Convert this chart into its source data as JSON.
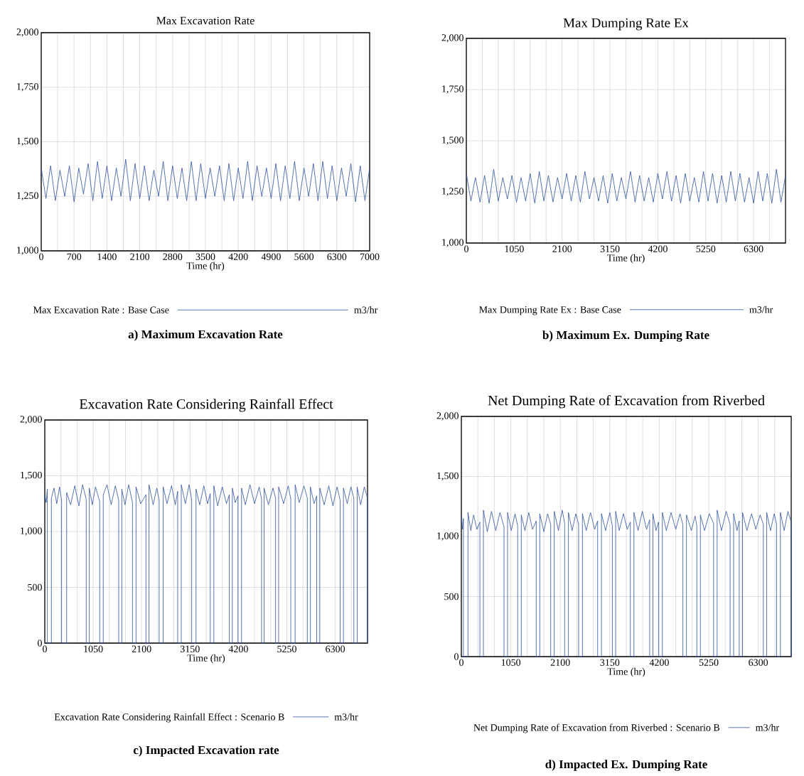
{
  "chart_data": [
    {
      "type": "line",
      "title": "Max Excavation Rate",
      "xlabel": "Time (hr)",
      "annotations": [
        "a) Maximum Excavation Rate",
        "m3/hr"
      ],
      "legend": "bottom",
      "grid": true,
      "xlim": [
        0,
        7000
      ],
      "ylim": [
        1000,
        2000
      ],
      "xticks": [
        0,
        {
          "value": 350,
          "label": null
        },
        700,
        {
          "value": 1050,
          "label": null
        },
        1400,
        {
          "value": 1750,
          "label": null
        },
        2100,
        {
          "value": 2450,
          "label": null
        },
        2800,
        {
          "value": 3150,
          "label": null
        },
        3500,
        {
          "value": 3850,
          "label": null
        },
        4200,
        {
          "value": 4550,
          "label": null
        },
        4900,
        {
          "value": 5250,
          "label": null
        },
        5600,
        {
          "value": 5950,
          "label": null
        },
        6300,
        {
          "value": 6650,
          "label": null
        },
        7000
      ],
      "yticks": [
        {
          "value": 1000,
          "label": "1,000"
        },
        {
          "value": 1250,
          "label": "1,250"
        },
        {
          "value": 1500,
          "label": "1,500"
        },
        {
          "value": 1750,
          "label": "1,750"
        },
        {
          "value": 2000,
          "label": "2,000"
        }
      ],
      "series": [
        {
          "name": "Max Excavation Rate : Base Case",
          "color": "#3050a0",
          "x": [
            0,
            100,
            200,
            300,
            400,
            500,
            600,
            700,
            800,
            900,
            1000,
            1100,
            1200,
            1300,
            1400,
            1500,
            1600,
            1700,
            1800,
            1900,
            2000,
            2100,
            2200,
            2300,
            2400,
            2500,
            2600,
            2700,
            2800,
            2900,
            3000,
            3100,
            3200,
            3300,
            3400,
            3500,
            3600,
            3700,
            3800,
            3900,
            4000,
            4100,
            4200,
            4300,
            4400,
            4500,
            4600,
            4700,
            4800,
            4900,
            5000,
            5100,
            5200,
            5300,
            5400,
            5500,
            5600,
            5700,
            5800,
            5900,
            6000,
            6100,
            6200,
            6300,
            6400,
            6500,
            6600,
            6700,
            6800,
            6900,
            7000
          ],
          "values": [
            1380,
            1240,
            1390,
            1230,
            1370,
            1250,
            1390,
            1225,
            1380,
            1260,
            1400,
            1230,
            1410,
            1240,
            1390,
            1230,
            1380,
            1250,
            1420,
            1230,
            1400,
            1240,
            1390,
            1230,
            1370,
            1250,
            1410,
            1230,
            1390,
            1240,
            1380,
            1230,
            1410,
            1230,
            1400,
            1240,
            1380,
            1250,
            1390,
            1230,
            1400,
            1230,
            1380,
            1240,
            1410,
            1230,
            1390,
            1250,
            1380,
            1240,
            1400,
            1230,
            1390,
            1240,
            1410,
            1230,
            1380,
            1250,
            1400,
            1230,
            1410,
            1240,
            1390,
            1230,
            1380,
            1250,
            1400,
            1225,
            1390,
            1230,
            1380
          ]
        }
      ]
    },
    {
      "type": "line",
      "title": "Max Dumping Rate Ex",
      "xlabel": "Time (hr)",
      "annotations": [
        "b) Maximum Ex. Dumping Rate",
        "m3/hr"
      ],
      "legend": "bottom",
      "grid": true,
      "xlim": [
        0,
        7000
      ],
      "ylim": [
        1000,
        2000
      ],
      "xticks": [
        0,
        {
          "value": 350,
          "label": null
        },
        {
          "value": 700,
          "label": null
        },
        1050,
        {
          "value": 1400,
          "label": null
        },
        {
          "value": 1750,
          "label": null
        },
        2100,
        {
          "value": 2450,
          "label": null
        },
        {
          "value": 2800,
          "label": null
        },
        3150,
        {
          "value": 3500,
          "label": null
        },
        {
          "value": 3850,
          "label": null
        },
        4200,
        {
          "value": 4550,
          "label": null
        },
        {
          "value": 4900,
          "label": null
        },
        5250,
        {
          "value": 5600,
          "label": null
        },
        {
          "value": 5950,
          "label": null
        },
        6300,
        {
          "value": 6650,
          "label": null
        }
      ],
      "yticks": [
        {
          "value": 1000,
          "label": "1,000"
        },
        {
          "value": 1250,
          "label": "1,250"
        },
        {
          "value": 1500,
          "label": "1,500"
        },
        {
          "value": 1750,
          "label": "1,750"
        },
        {
          "value": 2000,
          "label": "2,000"
        }
      ],
      "series": [
        {
          "name": "Max Dumping Rate Ex : Base Case",
          "color": "#3050a0",
          "x": [
            0,
            100,
            200,
            300,
            400,
            500,
            600,
            700,
            800,
            900,
            1000,
            1100,
            1200,
            1300,
            1400,
            1500,
            1600,
            1700,
            1800,
            1900,
            2000,
            2100,
            2200,
            2300,
            2400,
            2500,
            2600,
            2700,
            2800,
            2900,
            3000,
            3100,
            3200,
            3300,
            3400,
            3500,
            3600,
            3700,
            3800,
            3900,
            4000,
            4100,
            4200,
            4300,
            4400,
            4500,
            4600,
            4700,
            4800,
            4900,
            5000,
            5100,
            5200,
            5300,
            5400,
            5500,
            5600,
            5700,
            5800,
            5900,
            6000,
            6100,
            6200,
            6300,
            6400,
            6500,
            6600,
            6700,
            6800,
            6900,
            7000
          ],
          "values": [
            1340,
            1205,
            1320,
            1200,
            1330,
            1195,
            1360,
            1205,
            1320,
            1215,
            1330,
            1200,
            1320,
            1205,
            1340,
            1195,
            1350,
            1205,
            1330,
            1200,
            1320,
            1215,
            1340,
            1205,
            1330,
            1200,
            1350,
            1215,
            1320,
            1205,
            1330,
            1195,
            1340,
            1205,
            1320,
            1215,
            1350,
            1200,
            1330,
            1205,
            1320,
            1200,
            1340,
            1215,
            1350,
            1205,
            1330,
            1195,
            1340,
            1205,
            1320,
            1200,
            1350,
            1205,
            1340,
            1195,
            1330,
            1200,
            1350,
            1205,
            1340,
            1200,
            1320,
            1195,
            1350,
            1205,
            1340,
            1195,
            1360,
            1200,
            1330
          ]
        }
      ]
    },
    {
      "type": "line",
      "title": "Excavation Rate Considering Rainfall Effect",
      "xlabel": "Time (hr)",
      "annotations": [
        "c) Impacted Excavation rate",
        "m3/hr"
      ],
      "legend": "bottom",
      "grid": true,
      "xlim": [
        0,
        7000
      ],
      "ylim": [
        0,
        2000
      ],
      "xticks": [
        0,
        {
          "value": 350,
          "label": null
        },
        {
          "value": 700,
          "label": null
        },
        1050,
        {
          "value": 1400,
          "label": null
        },
        {
          "value": 1750,
          "label": null
        },
        2100,
        {
          "value": 2450,
          "label": null
        },
        {
          "value": 2800,
          "label": null
        },
        3150,
        {
          "value": 3500,
          "label": null
        },
        {
          "value": 3850,
          "label": null
        },
        4200,
        {
          "value": 4550,
          "label": null
        },
        {
          "value": 4900,
          "label": null
        },
        5250,
        {
          "value": 5600,
          "label": null
        },
        {
          "value": 5950,
          "label": null
        },
        6300,
        {
          "value": 6650,
          "label": null
        }
      ],
      "yticks": [
        0,
        500,
        {
          "value": 1000,
          "label": "1,000"
        },
        {
          "value": 1500,
          "label": "1,500"
        },
        {
          "value": 2000,
          "label": "2,000"
        }
      ],
      "series": [
        {
          "name": "Excavation Rate Considering Rainfall Effect : Scenario B",
          "color": "#3050a0",
          "x": [
            0,
            30,
            55,
            55,
            143,
            143,
            200,
            260,
            320,
            364,
            364,
            474,
            474,
            560,
            650,
            740,
            820,
            899,
            899,
            965,
            965,
            1030,
            1100,
            1191,
            1191,
            1268,
            1268,
            1350,
            1440,
            1530,
            1604,
            1604,
            1670,
            1670,
            1740,
            1820,
            1902,
            1902,
            1979,
            1979,
            2080,
            2194,
            2194,
            2260,
            2260,
            2350,
            2430,
            2481,
            2481,
            2569,
            2569,
            2650,
            2750,
            2830,
            2883,
            2883,
            2960,
            2960,
            3050,
            3130,
            3186,
            3186,
            3280,
            3280,
            3360,
            3450,
            3530,
            3589,
            3589,
            3666,
            3666,
            3750,
            3850,
            3940,
            4002,
            4002,
            4068,
            4068,
            4130,
            4190,
            4190,
            4267,
            4267,
            4350,
            4450,
            4550,
            4650,
            4702,
            4702,
            4757,
            4757,
            4850,
            4950,
            5005,
            5005,
            5072,
            5072,
            5180,
            5280,
            5336,
            5336,
            5430,
            5430,
            5520,
            5620,
            5694,
            5694,
            5761,
            5761,
            5840,
            5898,
            5898,
            5965,
            5965,
            6060,
            6160,
            6250,
            6340,
            6406,
            6406,
            6477,
            6477,
            6560,
            6640,
            6703,
            6703,
            6775,
            6775,
            6850,
            6930,
            7000,
            7000
          ],
          "values": [
            1330,
            1260,
            1380,
            0,
            0,
            1300,
            1390,
            1250,
            1400,
            1280,
            0,
            0,
            1350,
            1240,
            1410,
            1230,
            1420,
            1290,
            0,
            0,
            1390,
            1240,
            1400,
            1270,
            0,
            0,
            1330,
            1420,
            1240,
            1410,
            1280,
            0,
            0,
            1380,
            1240,
            1420,
            1260,
            0,
            0,
            1400,
            1250,
            1330,
            0,
            0,
            1420,
            1240,
            1390,
            1280,
            0,
            0,
            1400,
            1250,
            1410,
            1240,
            1360,
            0,
            0,
            1420,
            1250,
            1420,
            1290,
            0,
            0,
            1380,
            1240,
            1410,
            1250,
            1340,
            0,
            0,
            1410,
            1230,
            1400,
            1250,
            1330,
            0,
            0,
            1390,
            1260,
            1320,
            0,
            0,
            1390,
            1240,
            1420,
            1250,
            1400,
            1290,
            0,
            0,
            1390,
            1240,
            1390,
            1300,
            0,
            0,
            1400,
            1250,
            1410,
            1290,
            0,
            0,
            1420,
            1260,
            1410,
            1300,
            0,
            0,
            1400,
            1250,
            1320,
            0,
            0,
            1390,
            1240,
            1410,
            1230,
            1400,
            1280,
            0,
            0,
            1390,
            1250,
            1400,
            1300,
            0,
            0,
            1400,
            1240,
            1400,
            1300,
            0
          ]
        }
      ]
    },
    {
      "type": "line",
      "title": "Net Dumping Rate of Excavation from Riverbed",
      "xlabel": "Time (hr)",
      "annotations": [
        "d) Impacted Ex. Dumping Rate",
        "m3/hr"
      ],
      "legend": "bottom",
      "grid": true,
      "xlim": [
        0,
        7000
      ],
      "ylim": [
        0,
        2000
      ],
      "xticks": [
        0,
        {
          "value": 350,
          "label": null
        },
        {
          "value": 700,
          "label": null
        },
        1050,
        {
          "value": 1400,
          "label": null
        },
        {
          "value": 1750,
          "label": null
        },
        2100,
        {
          "value": 2450,
          "label": null
        },
        {
          "value": 2800,
          "label": null
        },
        3150,
        {
          "value": 3500,
          "label": null
        },
        {
          "value": 3850,
          "label": null
        },
        4200,
        {
          "value": 4550,
          "label": null
        },
        {
          "value": 4900,
          "label": null
        },
        5250,
        {
          "value": 5600,
          "label": null
        },
        {
          "value": 5950,
          "label": null
        },
        6300,
        {
          "value": 6650,
          "label": null
        }
      ],
      "yticks": [
        0,
        500,
        {
          "value": 1000,
          "label": "1,000"
        },
        {
          "value": 1500,
          "label": "1,500"
        },
        {
          "value": 2000,
          "label": "2,000"
        }
      ],
      "series": [
        {
          "name": "Net Dumping Rate of Excavation from Riverbed : Scenario B",
          "color": "#3050a0",
          "x": [
            0,
            25,
            43,
            43,
            140,
            140,
            200,
            260,
            330,
            393,
            393,
            468,
            468,
            550,
            640,
            730,
            820,
            905,
            905,
            980,
            980,
            1060,
            1140,
            1195,
            1195,
            1271,
            1271,
            1350,
            1430,
            1510,
            1589,
            1589,
            1664,
            1664,
            1750,
            1830,
            1896,
            1896,
            1971,
            1971,
            2060,
            2140,
            2192,
            2192,
            2272,
            2272,
            2350,
            2430,
            2488,
            2488,
            2569,
            2569,
            2650,
            2740,
            2830,
            2892,
            2892,
            2973,
            2973,
            3060,
            3150,
            3204,
            3204,
            3274,
            3274,
            3350,
            3440,
            3520,
            3586,
            3586,
            3662,
            3662,
            3750,
            3840,
            3930,
            3996,
            3996,
            4066,
            4066,
            4130,
            4184,
            4184,
            4265,
            4265,
            4350,
            4450,
            4550,
            4640,
            4701,
            4701,
            4777,
            4777,
            4880,
            4960,
            4997,
            4997,
            5073,
            5073,
            5160,
            5260,
            5353,
            5353,
            5428,
            5428,
            5520,
            5620,
            5703,
            5703,
            5778,
            5778,
            5850,
            5897,
            5897,
            5967,
            5967,
            6060,
            6160,
            6250,
            6340,
            6409,
            6409,
            6479,
            6479,
            6560,
            6640,
            6689,
            6689,
            6770,
            6770,
            6850,
            6930,
            7000,
            7000
          ],
          "values": [
            1180,
            1060,
            1150,
            0,
            0,
            1200,
            1050,
            1180,
            1060,
            1120,
            0,
            0,
            1220,
            1040,
            1210,
            1050,
            1200,
            1080,
            0,
            0,
            1200,
            1050,
            1190,
            1090,
            0,
            0,
            1180,
            1050,
            1200,
            1060,
            1130,
            0,
            0,
            1190,
            1040,
            1190,
            1100,
            0,
            0,
            1210,
            1050,
            1220,
            1110,
            0,
            0,
            1200,
            1050,
            1190,
            1100,
            0,
            0,
            1190,
            1050,
            1200,
            1060,
            1130,
            0,
            0,
            1190,
            1050,
            1200,
            1090,
            0,
            0,
            1210,
            1050,
            1190,
            1060,
            1120,
            0,
            0,
            1200,
            1050,
            1210,
            1060,
            1140,
            0,
            0,
            1190,
            1050,
            1120,
            0,
            0,
            1200,
            1050,
            1200,
            1060,
            1190,
            1100,
            0,
            0,
            1180,
            1050,
            1170,
            1090,
            0,
            0,
            1180,
            1050,
            1190,
            1110,
            0,
            0,
            1220,
            1050,
            1210,
            1100,
            0,
            0,
            1190,
            1050,
            1130,
            0,
            0,
            1200,
            1050,
            1190,
            1060,
            1180,
            1100,
            0,
            0,
            1200,
            1050,
            1190,
            1100,
            0,
            0,
            1200,
            1050,
            1210,
            1120,
            0
          ]
        }
      ]
    }
  ]
}
